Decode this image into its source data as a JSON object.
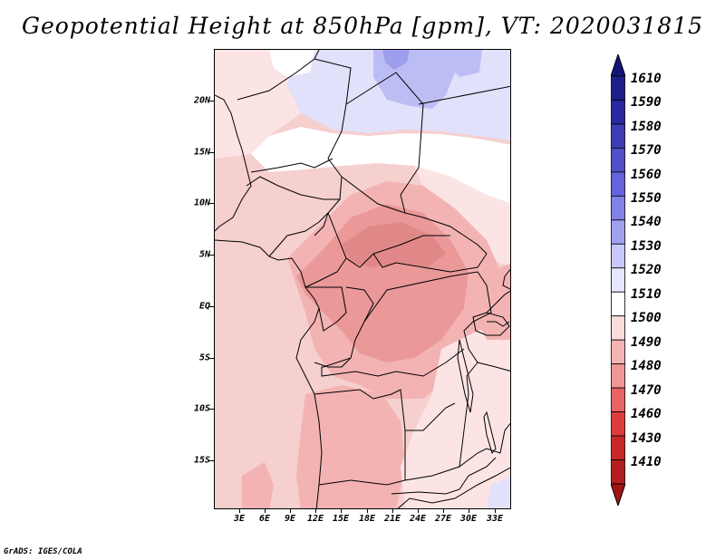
{
  "title": "Geopotential Height at 850hPa [gpm], VT: 2020031815",
  "footer": "GrADS: IGES/COLA",
  "lat_labels": [
    "20N",
    "15N",
    "10N",
    "5N",
    "EQ",
    "5S",
    "10S",
    "15S"
  ],
  "lon_labels": [
    "3E",
    "6E",
    "9E",
    "12E",
    "15E",
    "18E",
    "21E",
    "24E",
    "27E",
    "30E",
    "33E"
  ],
  "colorbar": {
    "levels": [
      "1610",
      "1590",
      "1580",
      "1570",
      "1560",
      "1550",
      "1540",
      "1530",
      "1520",
      "1510",
      "1500",
      "1490",
      "1480",
      "1470",
      "1460",
      "1430",
      "1410"
    ],
    "colors": [
      "#1e1e8c",
      "#2828a0",
      "#3c3cb4",
      "#5050c8",
      "#6464dc",
      "#8282e6",
      "#a0a0f0",
      "#c8c8fa",
      "#e6e6ff",
      "#ffffff",
      "#fadcdc",
      "#f5b4b4",
      "#f09696",
      "#e66464",
      "#dc3c3c",
      "#c82828",
      "#b41e1e"
    ],
    "top_color": "#141478",
    "bottom_color": "#a01414"
  },
  "field_colors": {
    "base": "#f6cfcf",
    "light": "#fde4e4",
    "white": "#ffffff",
    "lavender": "#e1e1fb",
    "blue": "#bdbdf5",
    "deep_blue": "#9e9eee",
    "pink": "#f3b3b3",
    "deep_pink": "#ea9898",
    "dark_pink": "#e08888"
  }
}
